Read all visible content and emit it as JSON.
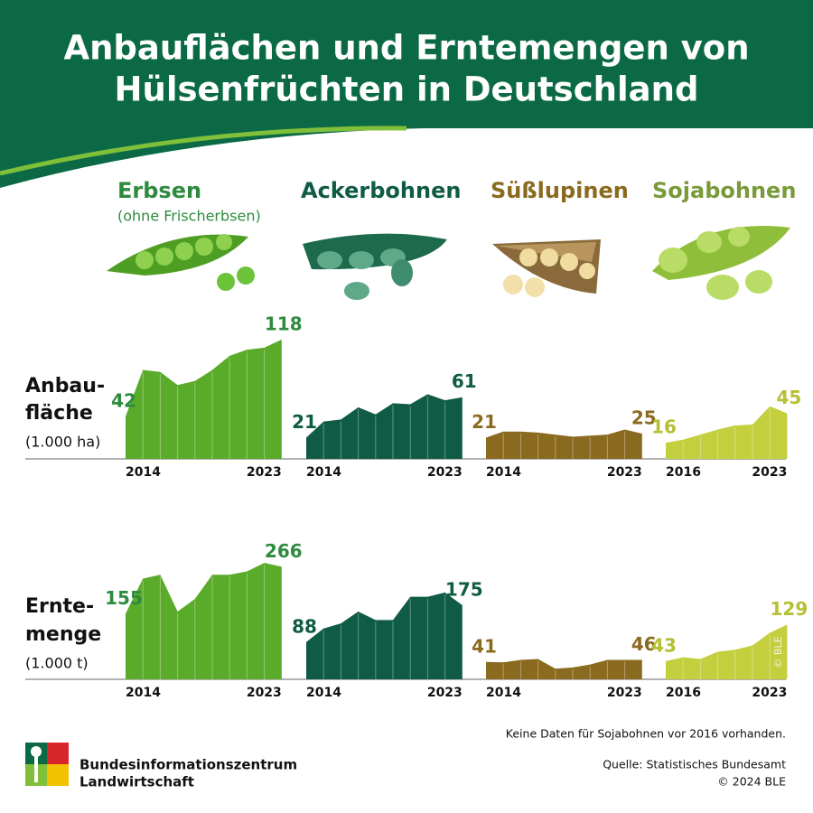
{
  "title": [
    "Anbauflächen und Erntemengen von",
    "Hülsenfrüchten in Deutschland"
  ],
  "crops": [
    {
      "name": "Erbsen",
      "note": "(ohne Frischerbsen)",
      "color": "#2e8b3e"
    },
    {
      "name": "Ackerbohnen",
      "color": "#0f5b45"
    },
    {
      "name": "Süßlupinen",
      "color": "#8a6a1e"
    },
    {
      "name": "Sojabohnen",
      "color": "#7a9a3a"
    }
  ],
  "rows": [
    {
      "label": [
        "Anbau-",
        "fläche"
      ],
      "unit": "(1.000 ha)"
    },
    {
      "label": [
        "Ernte-",
        "menge"
      ],
      "unit": "(1.000 t)"
    }
  ],
  "watermark": "© BLE",
  "footer": {
    "note": "Keine Daten für Sojabohnen vor 2016 vorhanden.",
    "source": "Quelle: Statistisches Bundesamt",
    "copyright": "© 2024 BLE",
    "logo": [
      "Bundesinformationszentrum",
      "Landwirtschaft"
    ]
  },
  "chart_data": [
    {
      "type": "area",
      "x": [
        2014,
        2015,
        2016,
        2017,
        2018,
        2019,
        2020,
        2021,
        2022,
        2023
      ],
      "values": [
        42,
        88,
        86,
        73,
        77,
        88,
        102,
        108,
        110,
        118
      ],
      "color": "#5aab2a",
      "label_color": "#2e8b3e",
      "xlim": [
        2014,
        2023
      ],
      "xticks": [
        2014,
        2023
      ],
      "ylim": [
        0,
        134
      ]
    },
    {
      "type": "area",
      "x": [
        2014,
        2015,
        2016,
        2017,
        2018,
        2019,
        2020,
        2021,
        2022,
        2023
      ],
      "values": [
        21,
        37,
        39,
        51,
        44,
        55,
        54,
        64,
        58,
        61
      ],
      "color": "#0f5b45",
      "label_color": "#0f5b45",
      "xlim": [
        2014,
        2023
      ],
      "xticks": [
        2014,
        2023
      ],
      "ylim": [
        0,
        134
      ]
    },
    {
      "type": "area",
      "x": [
        2014,
        2015,
        2016,
        2017,
        2018,
        2019,
        2020,
        2021,
        2022,
        2023
      ],
      "values": [
        21,
        27,
        27,
        26,
        24,
        22,
        23,
        24,
        29,
        25
      ],
      "color": "#8a6a1e",
      "label_color": "#8a6a1e",
      "xlim": [
        2014,
        2023
      ],
      "xticks": [
        2014,
        2023
      ],
      "ylim": [
        0,
        134
      ]
    },
    {
      "type": "area",
      "x": [
        2016,
        2017,
        2018,
        2019,
        2020,
        2021,
        2022,
        2023
      ],
      "values": [
        16,
        19,
        24,
        29,
        33,
        34,
        52,
        45
      ],
      "color": "#c3cf3c",
      "label_color": "#b5c034",
      "xlim": [
        2016,
        2023
      ],
      "xticks": [
        2016,
        2023
      ],
      "ylim": [
        0,
        134
      ]
    },
    {
      "type": "area",
      "x": [
        2014,
        2015,
        2016,
        2017,
        2018,
        2019,
        2020,
        2021,
        2022,
        2023
      ],
      "values": [
        155,
        238,
        247,
        160,
        190,
        247,
        247,
        255,
        275,
        266
      ],
      "color": "#5aab2a",
      "label_color": "#2e8b3e",
      "xlim": [
        2014,
        2023
      ],
      "xticks": [
        2014,
        2023
      ],
      "ylim": [
        0,
        320
      ]
    },
    {
      "type": "area",
      "x": [
        2014,
        2015,
        2016,
        2017,
        2018,
        2019,
        2020,
        2021,
        2022,
        2023
      ],
      "values": [
        88,
        120,
        132,
        160,
        140,
        140,
        195,
        195,
        205,
        175
      ],
      "color": "#0f5b45",
      "label_color": "#0f5b45",
      "xlim": [
        2014,
        2023
      ],
      "xticks": [
        2014,
        2023
      ],
      "ylim": [
        0,
        320
      ]
    },
    {
      "type": "area",
      "x": [
        2014,
        2015,
        2016,
        2017,
        2018,
        2019,
        2020,
        2021,
        2022,
        2023
      ],
      "values": [
        41,
        40,
        46,
        48,
        25,
        28,
        35,
        46,
        46,
        46
      ],
      "color": "#8a6a1e",
      "label_color": "#8a6a1e",
      "xlim": [
        2014,
        2023
      ],
      "xticks": [
        2014,
        2023
      ],
      "ylim": [
        0,
        320
      ]
    },
    {
      "type": "area",
      "x": [
        2016,
        2017,
        2018,
        2019,
        2020,
        2021,
        2022,
        2023
      ],
      "values": [
        43,
        52,
        48,
        65,
        70,
        80,
        110,
        129
      ],
      "color": "#c3cf3c",
      "label_color": "#b5c034",
      "xlim": [
        2016,
        2023
      ],
      "xticks": [
        2016,
        2023
      ],
      "ylim": [
        0,
        320
      ]
    }
  ]
}
